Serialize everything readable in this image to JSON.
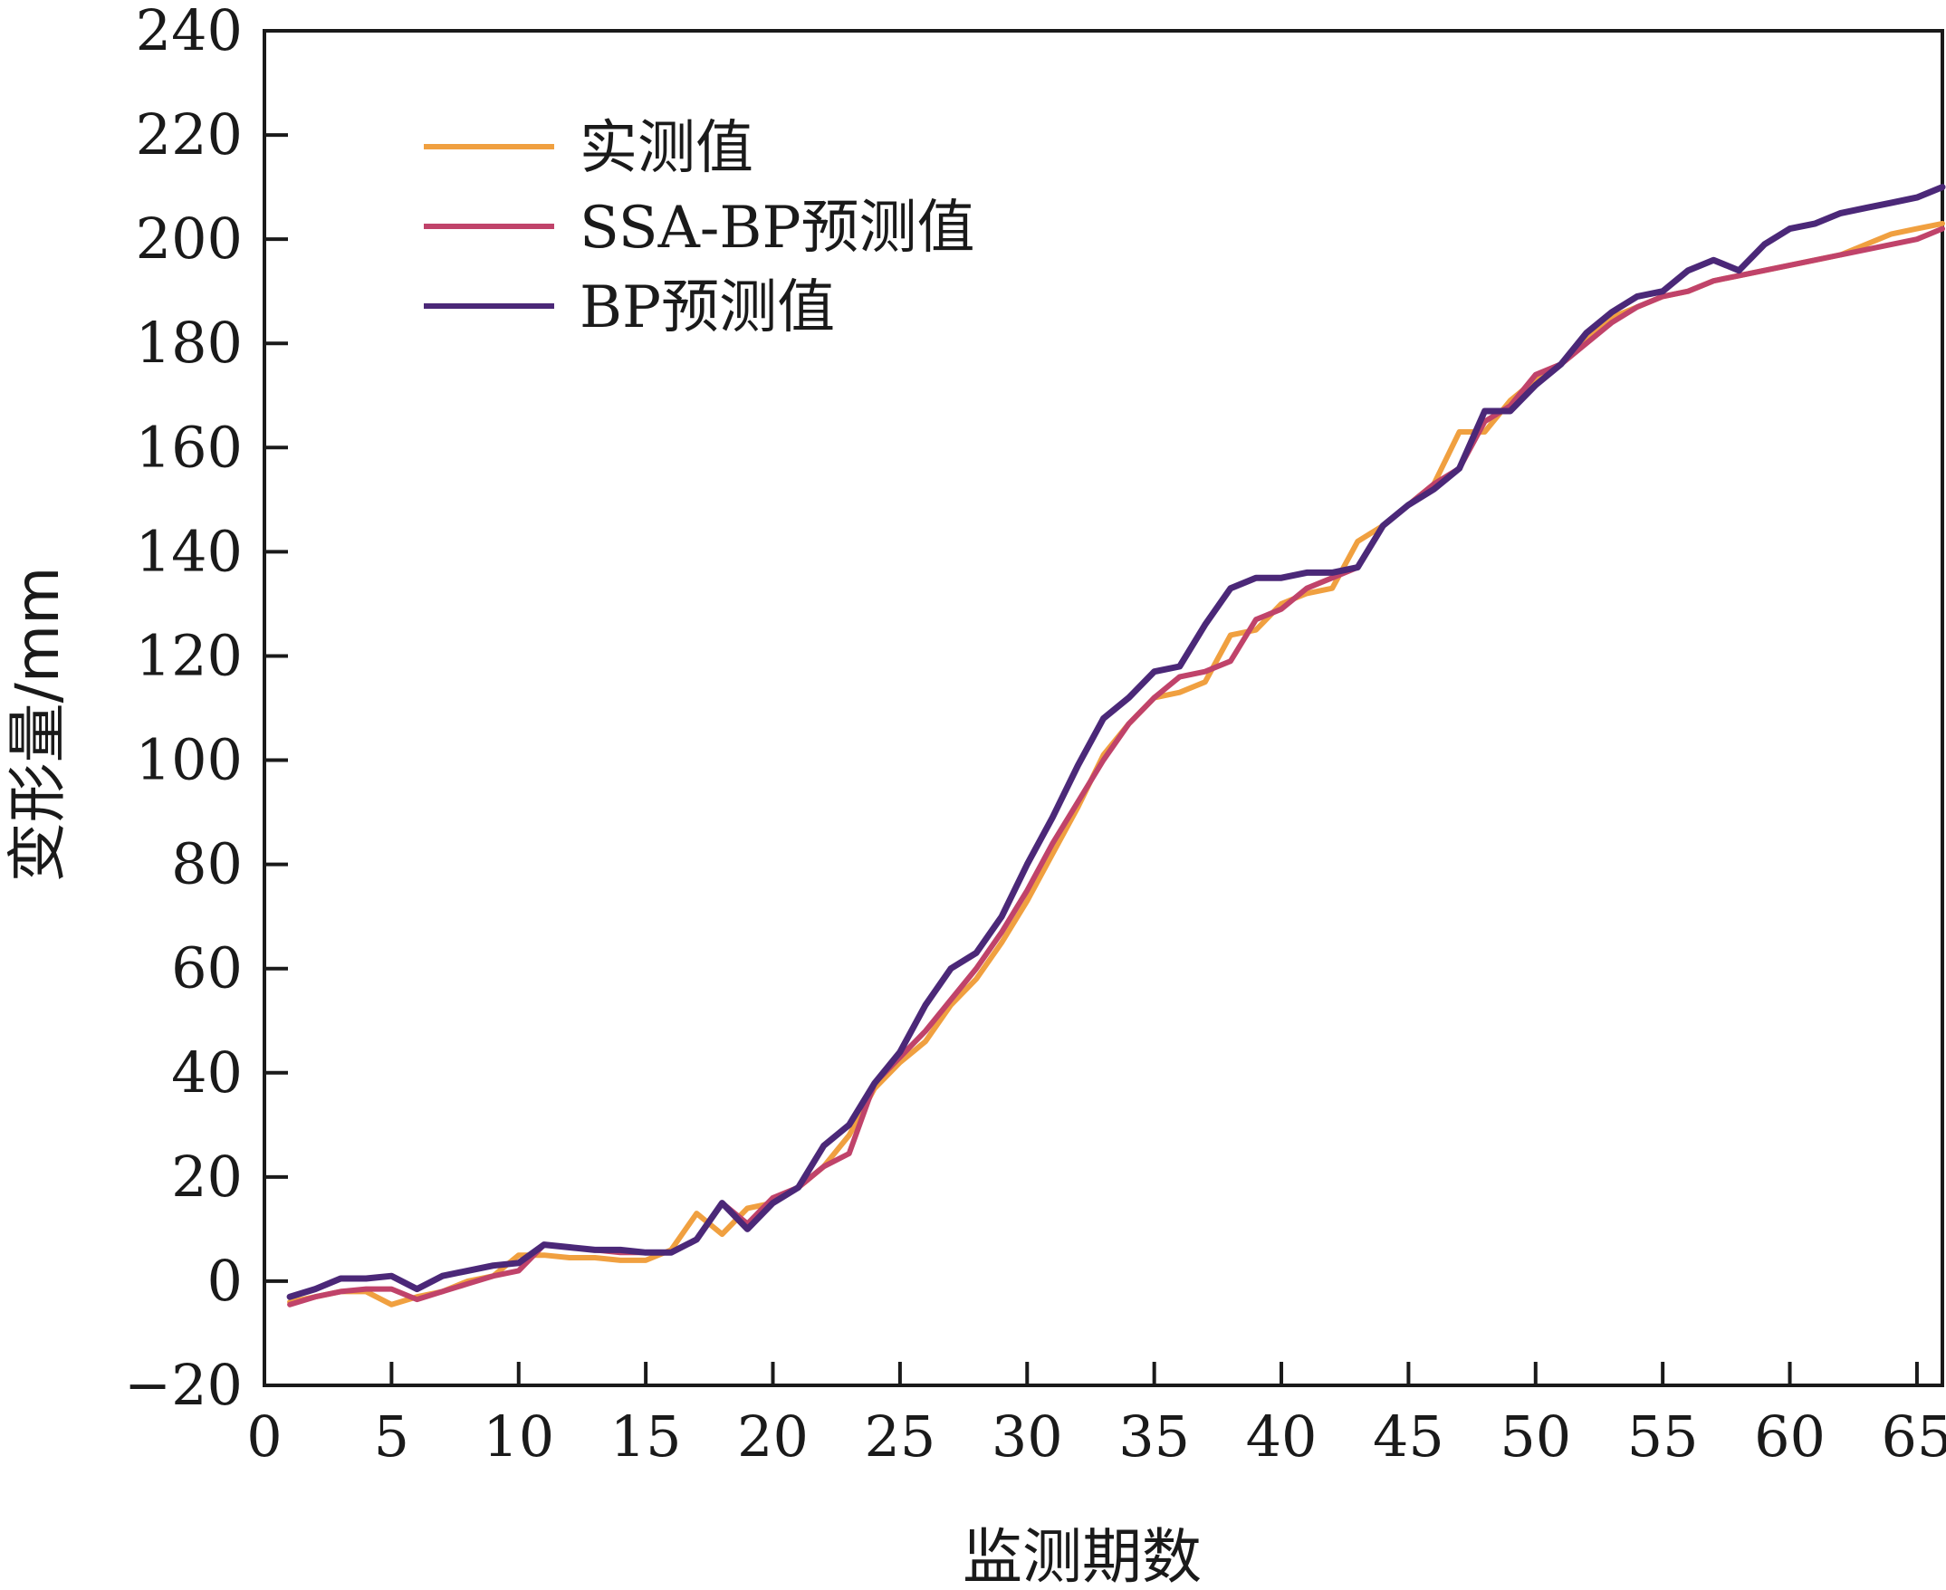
{
  "chart_data": {
    "type": "line",
    "xlabel": "监测期数",
    "ylabel": "变形量/mm",
    "xlim": [
      0,
      66
    ],
    "ylim": [
      -20,
      240
    ],
    "xticks": [
      0,
      5,
      10,
      15,
      20,
      25,
      30,
      35,
      40,
      45,
      50,
      55,
      60,
      65
    ],
    "yticks": [
      -20,
      0,
      20,
      40,
      60,
      80,
      100,
      120,
      140,
      160,
      180,
      200,
      220,
      240
    ],
    "ytick_labels": [
      "−20",
      "0",
      "20",
      "40",
      "60",
      "80",
      "100",
      "120",
      "140",
      "160",
      "180",
      "200",
      "220",
      "240"
    ],
    "grid": false,
    "legend_position": "top-left",
    "x": [
      1,
      2,
      3,
      4,
      5,
      6,
      7,
      8,
      9,
      10,
      11,
      12,
      13,
      14,
      15,
      16,
      17,
      18,
      19,
      20,
      21,
      22,
      23,
      24,
      25,
      26,
      27,
      28,
      29,
      30,
      31,
      32,
      33,
      34,
      35,
      36,
      37,
      38,
      39,
      40,
      41,
      42,
      43,
      44,
      45,
      46,
      47,
      48,
      49,
      50,
      51,
      52,
      53,
      54,
      55,
      56,
      57,
      58,
      59,
      60,
      61,
      62,
      63,
      64,
      65,
      66
    ],
    "series": [
      {
        "name": "实测值",
        "color": "#f0a040",
        "values": [
          -4,
          -3,
          -2,
          -2,
          -4.5,
          -3,
          -2,
          0,
          1,
          5,
          5,
          4.5,
          4.5,
          4,
          4,
          6,
          13,
          9,
          14,
          15,
          18,
          22,
          28,
          37,
          42,
          46,
          53,
          58,
          65,
          73,
          82,
          91,
          101,
          107,
          112,
          113,
          115,
          124,
          125,
          130,
          132,
          133,
          142,
          145,
          149,
          153,
          163,
          163,
          169,
          173,
          176,
          181,
          185,
          187,
          189,
          190,
          192,
          193,
          194,
          195,
          196,
          197,
          199,
          201,
          202,
          203
        ],
        "width": 6
      },
      {
        "name": "SSA-BP预测值",
        "color": "#c0436a",
        "values": [
          -4.5,
          -3,
          -2,
          -1.5,
          -1.5,
          -3.5,
          -2,
          -0.5,
          1,
          2,
          7,
          6.5,
          6,
          5.5,
          5.5,
          5.5,
          8,
          15,
          11,
          16,
          18,
          22,
          24.5,
          38,
          43,
          48,
          54,
          60,
          67,
          75,
          84,
          92,
          100,
          107,
          112,
          116,
          117,
          119,
          127,
          129,
          133,
          135,
          137,
          145,
          149,
          153,
          156,
          165,
          168,
          174,
          176,
          180,
          184,
          187,
          189,
          190,
          192,
          193,
          194,
          195,
          196,
          197,
          198,
          199,
          200,
          202
        ],
        "width": 6
      },
      {
        "name": "BP预测值",
        "color": "#4b2878",
        "values": [
          -3,
          -1.5,
          0.5,
          0.5,
          1,
          -1.5,
          1,
          2,
          3,
          3.5,
          7,
          6.5,
          6,
          6,
          5.5,
          5.5,
          8,
          15,
          10,
          15,
          18,
          26,
          30,
          38,
          44,
          53,
          60,
          63,
          70,
          80,
          89,
          99,
          108,
          112,
          117,
          118,
          126,
          133,
          135,
          135,
          136,
          136,
          137,
          145,
          149,
          152,
          156,
          167,
          167,
          172,
          176,
          182,
          186,
          189,
          190,
          194,
          196,
          194,
          199,
          202,
          203,
          205,
          206,
          207,
          208,
          210
        ],
        "width": 7
      }
    ]
  }
}
